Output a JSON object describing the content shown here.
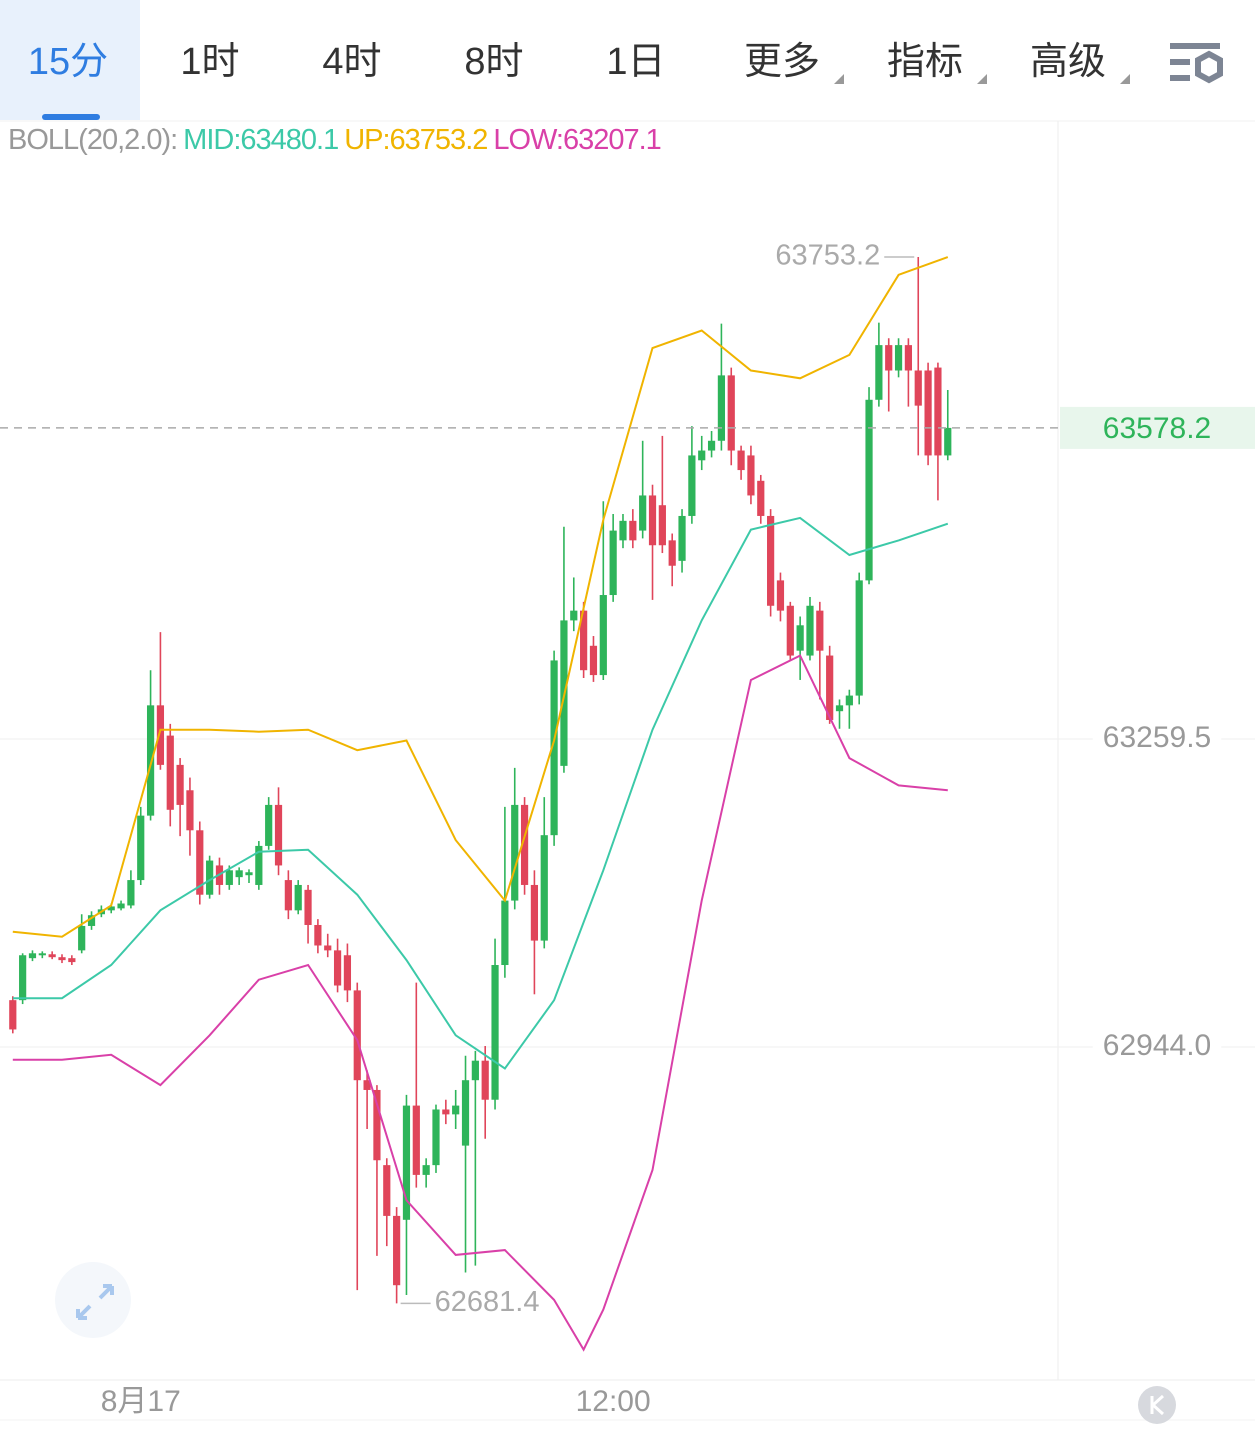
{
  "tabs": [
    "15分",
    "1时",
    "4时",
    "8时",
    "1日",
    "更多",
    "指标",
    "高级"
  ],
  "chart_data": {
    "type": "candlestick",
    "indicator_label": "BOLL(20,2.0):",
    "up_color": "#2eb45a",
    "down_color": "#e0455a",
    "xlim": [
      -1.3,
      106.2
    ],
    "xticks": [
      {
        "value": 13,
        "label": "8月17"
      },
      {
        "value": 61,
        "label": "12:00"
      }
    ],
    "ylim": [
      62602.9,
      63893.6
    ],
    "yticks": [
      63259.5,
      {
        "value": 62944,
        "label": "62944.0"
      }
    ],
    "grid": true,
    "open": [
      62992,
      62992,
      63035,
      63038,
      63039,
      63036,
      63035,
      63043,
      63068,
      63080,
      63084,
      63086,
      63089,
      63115,
      63181,
      63294,
      63263,
      63233,
      63207,
      63166,
      63100,
      63130,
      63110,
      63118,
      63120,
      63110,
      63150,
      63192,
      63115,
      63084,
      63105,
      63069,
      63048,
      63043,
      63038,
      63002,
      62910,
      62900,
      62823,
      62771,
      62767,
      62884,
      62813,
      62823,
      62880,
      62875,
      62843,
      62910,
      62930,
      62890,
      63028,
      63094,
      63192,
      63110,
      63053,
      63161,
      63232,
      63381,
      63391,
      63355,
      63325,
      63407,
      63463,
      63483,
      63473,
      63509,
      63499,
      63463,
      63442,
      63488,
      63545,
      63555,
      63565,
      63632,
      63555,
      63550,
      63524,
      63488,
      63422,
      63396,
      63350,
      63345,
      63391,
      63345,
      63288,
      63294,
      63304,
      63422,
      63607,
      63663,
      63637,
      63663,
      63637,
      63637,
      63640,
      63550
    ],
    "high": [
      62996,
      63040,
      63043,
      63042,
      63042,
      63039,
      63038,
      63080,
      63083,
      63089,
      63091,
      63094,
      63125,
      63190,
      63330,
      63369,
      63275,
      63240,
      63220,
      63175,
      63140,
      63138,
      63130,
      63128,
      63126,
      63155,
      63200,
      63210,
      63125,
      63115,
      63110,
      63075,
      63060,
      63055,
      63050,
      63010,
      62920,
      62905,
      62830,
      62780,
      62895,
      63010,
      62830,
      62885,
      62890,
      62900,
      62935,
      62940,
      62945,
      63055,
      63190,
      63230,
      63200,
      63125,
      63200,
      63350,
      63477,
      63425,
      63400,
      63365,
      63503,
      63490,
      63490,
      63495,
      63565,
      63520,
      63570,
      63470,
      63495,
      63580,
      63570,
      63575,
      63685,
      63640,
      63560,
      63560,
      63530,
      63495,
      63430,
      63400,
      63385,
      63405,
      63400,
      63355,
      63300,
      63310,
      63430,
      63620,
      63686,
      63670,
      63670,
      63670,
      63753.2,
      63645,
      63645,
      63617
    ],
    "low": [
      62958,
      62988,
      63032,
      63035,
      63034,
      63030,
      63028,
      63040,
      63064,
      63077,
      63081,
      63084,
      63086,
      63110,
      63176,
      63228,
      63170,
      63160,
      63140,
      63090,
      63096,
      63100,
      63105,
      63110,
      63112,
      63105,
      63146,
      63120,
      63075,
      63080,
      63050,
      63040,
      63036,
      63000,
      62990,
      62695,
      62860,
      62730,
      62740,
      62681.4,
      62690,
      62800,
      62800,
      62815,
      62865,
      62860,
      62713,
      62720,
      62850,
      62880,
      63015,
      63085,
      63100,
      62998,
      63045,
      63150,
      63225,
      63370,
      63322,
      63318,
      63320,
      63400,
      63455,
      63455,
      63465,
      63402,
      63450,
      63416,
      63430,
      63480,
      63535,
      63548,
      63555,
      63540,
      63525,
      63500,
      63480,
      63385,
      63380,
      63340,
      63320,
      63340,
      63300,
      63275,
      63270,
      63270,
      63295,
      63418,
      63600,
      63595,
      63630,
      63600,
      63550,
      63540,
      63504,
      63545
    ],
    "close": [
      62962,
      63038,
      63040,
      63040,
      63036,
      63033,
      63031,
      63068,
      63079,
      63085,
      63088,
      63091,
      63115,
      63181,
      63294,
      63233,
      63187,
      63192,
      63166,
      63100,
      63135,
      63110,
      63125,
      63125,
      63123,
      63150,
      63192,
      63130,
      63084,
      63110,
      63069,
      63048,
      63043,
      63007,
      63002,
      62910,
      62900,
      62828,
      62771,
      62700,
      62884,
      62813,
      62823,
      62880,
      62875,
      62884,
      62910,
      62930,
      62890,
      63028,
      63094,
      63192,
      63110,
      63053,
      63161,
      63340,
      63381,
      63391,
      63330,
      63325,
      63407,
      63473,
      63483,
      63463,
      63509,
      63458,
      63458,
      63437,
      63488,
      63550,
      63555,
      63565,
      63632,
      63555,
      63535,
      63509,
      63488,
      63396,
      63391,
      63345,
      63376,
      63396,
      63350,
      63279,
      63294,
      63304,
      63422,
      63607,
      63663,
      63637,
      63663,
      63637,
      63601,
      63550,
      63550,
      63578.2
    ],
    "series": [
      {
        "name": "MID:63480.1",
        "color": "#3cc9a8",
        "x": [
          0,
          5,
          10,
          15,
          20,
          25,
          30,
          35,
          40,
          45,
          50,
          55,
          60,
          65,
          70,
          75,
          80,
          85,
          90,
          95
        ],
        "values": [
          62994,
          62994,
          63028,
          63084,
          63115,
          63144,
          63146,
          63100,
          63033,
          62956,
          62922,
          62992,
          63125,
          63269,
          63381,
          63474,
          63486,
          63448,
          63463,
          63480.1
        ]
      },
      {
        "name": "UP:63753.2",
        "color": "#f0b400",
        "x": [
          0,
          5,
          10,
          15,
          20,
          25,
          30,
          35,
          40,
          45,
          50,
          55,
          60,
          65,
          70,
          75,
          80,
          85,
          90,
          95
        ],
        "values": [
          63062,
          63057,
          63089,
          63269,
          63269,
          63267,
          63269,
          63248,
          63258,
          63156,
          63094,
          63258,
          63484,
          63660,
          63678,
          63637,
          63629,
          63653,
          63735,
          63753.2
        ]
      },
      {
        "name": "LOW:63207.1",
        "color": "#d940a8",
        "x": [
          0,
          5,
          10,
          15,
          20,
          25,
          30,
          35,
          40,
          45,
          50,
          55,
          58,
          60,
          65,
          70,
          75,
          80,
          85,
          90,
          95
        ],
        "values": [
          62931,
          62931,
          62936,
          62905,
          62956,
          63013,
          63028,
          62951,
          62787,
          62731,
          62736,
          62685,
          62634,
          62675,
          62818,
          63094,
          63320,
          63345,
          63240,
          63212,
          63207.1
        ]
      }
    ],
    "high_marker": 63753.2,
    "low_marker": 62681.4,
    "last_price": 63578.2
  }
}
